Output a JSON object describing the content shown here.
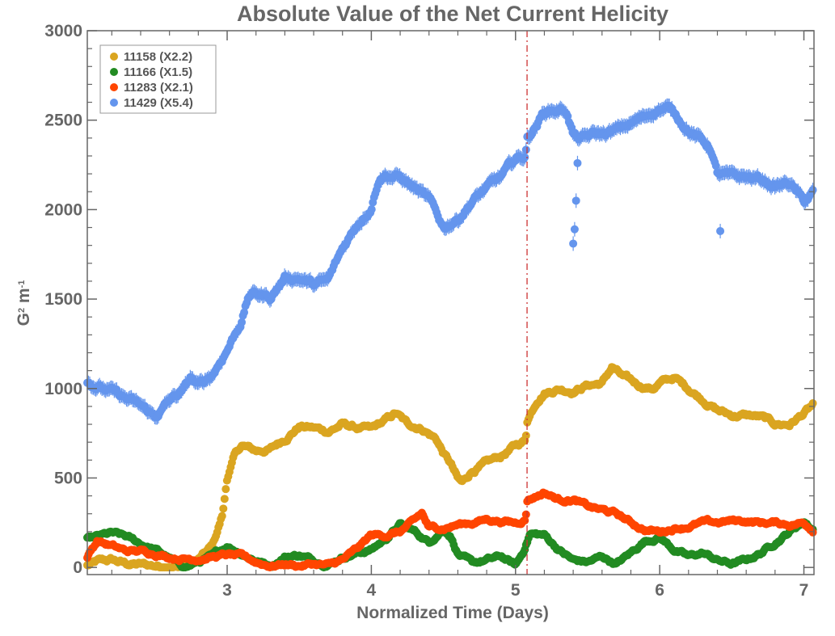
{
  "chart_data": {
    "type": "scatter",
    "title": "Absolute Value of the Net Current Helicity",
    "xlabel": "Normalized Time (Days)",
    "ylabel_main": "G",
    "ylabel_sup1": "2",
    "ylabel_mid": " m",
    "ylabel_sup2": "-1",
    "xlim": [
      2.03,
      7.07
    ],
    "ylim": [
      -40,
      3000
    ],
    "xticks": [
      3,
      4,
      5,
      6,
      7
    ],
    "yticks": [
      0,
      500,
      1000,
      1500,
      2000,
      2500,
      3000
    ],
    "vline_x": 5.08,
    "legend_position": "top-left",
    "series": [
      {
        "name": "11158 (X2.2)",
        "color": "#DAA520",
        "anchors": [
          [
            2.03,
            10
          ],
          [
            2.1,
            30
          ],
          [
            2.2,
            40
          ],
          [
            2.3,
            20
          ],
          [
            2.4,
            15
          ],
          [
            2.5,
            10
          ],
          [
            2.6,
            0
          ],
          [
            2.7,
            10
          ],
          [
            2.8,
            40
          ],
          [
            2.9,
            120
          ],
          [
            2.97,
            300
          ],
          [
            3.0,
            500
          ],
          [
            3.05,
            620
          ],
          [
            3.1,
            680
          ],
          [
            3.2,
            650
          ],
          [
            3.3,
            660
          ],
          [
            3.4,
            720
          ],
          [
            3.5,
            790
          ],
          [
            3.6,
            780
          ],
          [
            3.7,
            760
          ],
          [
            3.8,
            800
          ],
          [
            3.9,
            780
          ],
          [
            4.0,
            770
          ],
          [
            4.1,
            820
          ],
          [
            4.17,
            860
          ],
          [
            4.25,
            800
          ],
          [
            4.35,
            780
          ],
          [
            4.45,
            720
          ],
          [
            4.5,
            640
          ],
          [
            4.55,
            580
          ],
          [
            4.6,
            490
          ],
          [
            4.63,
            470
          ],
          [
            4.7,
            540
          ],
          [
            4.8,
            580
          ],
          [
            4.9,
            620
          ],
          [
            5.0,
            680
          ],
          [
            5.07,
            710
          ],
          [
            5.08,
            820
          ],
          [
            5.15,
            940
          ],
          [
            5.2,
            980
          ],
          [
            5.3,
            1000
          ],
          [
            5.4,
            990
          ],
          [
            5.5,
            1020
          ],
          [
            5.6,
            1030
          ],
          [
            5.67,
            1120
          ],
          [
            5.75,
            1060
          ],
          [
            5.85,
            1020
          ],
          [
            5.95,
            1000
          ],
          [
            6.0,
            1030
          ],
          [
            6.1,
            1060
          ],
          [
            6.2,
            1000
          ],
          [
            6.3,
            940
          ],
          [
            6.4,
            880
          ],
          [
            6.5,
            850
          ],
          [
            6.6,
            850
          ],
          [
            6.7,
            840
          ],
          [
            6.8,
            800
          ],
          [
            6.9,
            800
          ],
          [
            7.0,
            860
          ],
          [
            7.07,
            910
          ]
        ],
        "noise": 15
      },
      {
        "name": "11166 (X1.5)",
        "color": "#228B22",
        "anchors": [
          [
            2.03,
            160
          ],
          [
            2.1,
            170
          ],
          [
            2.2,
            190
          ],
          [
            2.3,
            170
          ],
          [
            2.4,
            130
          ],
          [
            2.5,
            100
          ],
          [
            2.6,
            50
          ],
          [
            2.7,
            0
          ],
          [
            2.8,
            30
          ],
          [
            2.9,
            60
          ],
          [
            3.0,
            120
          ],
          [
            3.1,
            80
          ],
          [
            3.2,
            40
          ],
          [
            3.3,
            10
          ],
          [
            3.4,
            60
          ],
          [
            3.5,
            70
          ],
          [
            3.6,
            40
          ],
          [
            3.7,
            20
          ],
          [
            3.8,
            60
          ],
          [
            3.9,
            80
          ],
          [
            4.0,
            100
          ],
          [
            4.1,
            160
          ],
          [
            4.2,
            240
          ],
          [
            4.3,
            200
          ],
          [
            4.4,
            140
          ],
          [
            4.5,
            220
          ],
          [
            4.55,
            180
          ],
          [
            4.6,
            80
          ],
          [
            4.7,
            20
          ],
          [
            4.8,
            40
          ],
          [
            4.9,
            60
          ],
          [
            5.0,
            10
          ],
          [
            5.05,
            80
          ],
          [
            5.1,
            190
          ],
          [
            5.2,
            180
          ],
          [
            5.3,
            100
          ],
          [
            5.4,
            40
          ],
          [
            5.5,
            30
          ],
          [
            5.6,
            60
          ],
          [
            5.7,
            20
          ],
          [
            5.8,
            80
          ],
          [
            5.9,
            150
          ],
          [
            6.0,
            170
          ],
          [
            6.1,
            100
          ],
          [
            6.2,
            60
          ],
          [
            6.3,
            80
          ],
          [
            6.4,
            40
          ],
          [
            6.5,
            20
          ],
          [
            6.6,
            40
          ],
          [
            6.7,
            80
          ],
          [
            6.8,
            140
          ],
          [
            6.9,
            200
          ],
          [
            7.0,
            260
          ],
          [
            7.07,
            210
          ]
        ],
        "noise": 12
      },
      {
        "name": "11283 (X2.1)",
        "color": "#FF4500",
        "anchors": [
          [
            2.03,
            60
          ],
          [
            2.1,
            150
          ],
          [
            2.2,
            120
          ],
          [
            2.3,
            90
          ],
          [
            2.4,
            90
          ],
          [
            2.5,
            80
          ],
          [
            2.6,
            60
          ],
          [
            2.7,
            50
          ],
          [
            2.8,
            50
          ],
          [
            2.9,
            60
          ],
          [
            3.0,
            70
          ],
          [
            3.1,
            60
          ],
          [
            3.2,
            30
          ],
          [
            3.3,
            10
          ],
          [
            3.4,
            20
          ],
          [
            3.5,
            10
          ],
          [
            3.6,
            20
          ],
          [
            3.7,
            10
          ],
          [
            3.8,
            40
          ],
          [
            3.9,
            100
          ],
          [
            4.0,
            180
          ],
          [
            4.1,
            180
          ],
          [
            4.2,
            200
          ],
          [
            4.3,
            260
          ],
          [
            4.35,
            300
          ],
          [
            4.4,
            220
          ],
          [
            4.5,
            220
          ],
          [
            4.6,
            240
          ],
          [
            4.7,
            250
          ],
          [
            4.8,
            270
          ],
          [
            4.9,
            260
          ],
          [
            5.0,
            250
          ],
          [
            5.07,
            270
          ],
          [
            5.08,
            380
          ],
          [
            5.2,
            420
          ],
          [
            5.3,
            380
          ],
          [
            5.4,
            380
          ],
          [
            5.5,
            340
          ],
          [
            5.6,
            320
          ],
          [
            5.7,
            300
          ],
          [
            5.8,
            250
          ],
          [
            5.9,
            210
          ],
          [
            6.0,
            200
          ],
          [
            6.1,
            220
          ],
          [
            6.2,
            230
          ],
          [
            6.3,
            250
          ],
          [
            6.4,
            250
          ],
          [
            6.5,
            260
          ],
          [
            6.6,
            260
          ],
          [
            6.7,
            250
          ],
          [
            6.8,
            250
          ],
          [
            6.9,
            240
          ],
          [
            7.0,
            250
          ],
          [
            7.07,
            210
          ]
        ],
        "noise": 12
      },
      {
        "name": "11429 (X5.4)",
        "color": "#6495ED",
        "anchors": [
          [
            2.03,
            1030
          ],
          [
            2.1,
            1010
          ],
          [
            2.2,
            980
          ],
          [
            2.3,
            940
          ],
          [
            2.4,
            900
          ],
          [
            2.5,
            840
          ],
          [
            2.6,
            930
          ],
          [
            2.7,
            990
          ],
          [
            2.75,
            1060
          ],
          [
            2.8,
            1010
          ],
          [
            2.9,
            1080
          ],
          [
            3.0,
            1220
          ],
          [
            3.1,
            1380
          ],
          [
            3.15,
            1520
          ],
          [
            3.2,
            1530
          ],
          [
            3.3,
            1510
          ],
          [
            3.4,
            1620
          ],
          [
            3.5,
            1620
          ],
          [
            3.6,
            1580
          ],
          [
            3.7,
            1600
          ],
          [
            3.8,
            1780
          ],
          [
            3.9,
            1920
          ],
          [
            4.0,
            2020
          ],
          [
            4.05,
            2180
          ],
          [
            4.1,
            2200
          ],
          [
            4.2,
            2180
          ],
          [
            4.3,
            2120
          ],
          [
            4.4,
            2050
          ],
          [
            4.5,
            1900
          ],
          [
            4.6,
            1950
          ],
          [
            4.7,
            2050
          ],
          [
            4.8,
            2120
          ],
          [
            4.9,
            2180
          ],
          [
            5.0,
            2280
          ],
          [
            5.07,
            2300
          ],
          [
            5.08,
            2400
          ],
          [
            5.15,
            2480
          ],
          [
            5.2,
            2550
          ],
          [
            5.3,
            2560
          ],
          [
            5.35,
            2560
          ],
          [
            5.4,
            2420
          ],
          [
            5.45,
            2390
          ],
          [
            5.55,
            2420
          ],
          [
            5.6,
            2420
          ],
          [
            5.7,
            2440
          ],
          [
            5.8,
            2480
          ],
          [
            5.9,
            2520
          ],
          [
            6.0,
            2570
          ],
          [
            6.05,
            2570
          ],
          [
            6.1,
            2540
          ],
          [
            6.2,
            2450
          ],
          [
            6.3,
            2380
          ],
          [
            6.35,
            2350
          ],
          [
            6.4,
            2200
          ],
          [
            6.5,
            2180
          ],
          [
            6.6,
            2180
          ],
          [
            6.7,
            2170
          ],
          [
            6.8,
            2130
          ],
          [
            6.9,
            2150
          ],
          [
            7.0,
            2040
          ],
          [
            7.07,
            2100
          ]
        ],
        "noise": 20,
        "outliers": [
          [
            5.4,
            1810
          ],
          [
            5.41,
            1890
          ],
          [
            5.42,
            2050
          ],
          [
            5.43,
            2260
          ],
          [
            6.42,
            1880
          ]
        ]
      }
    ]
  }
}
